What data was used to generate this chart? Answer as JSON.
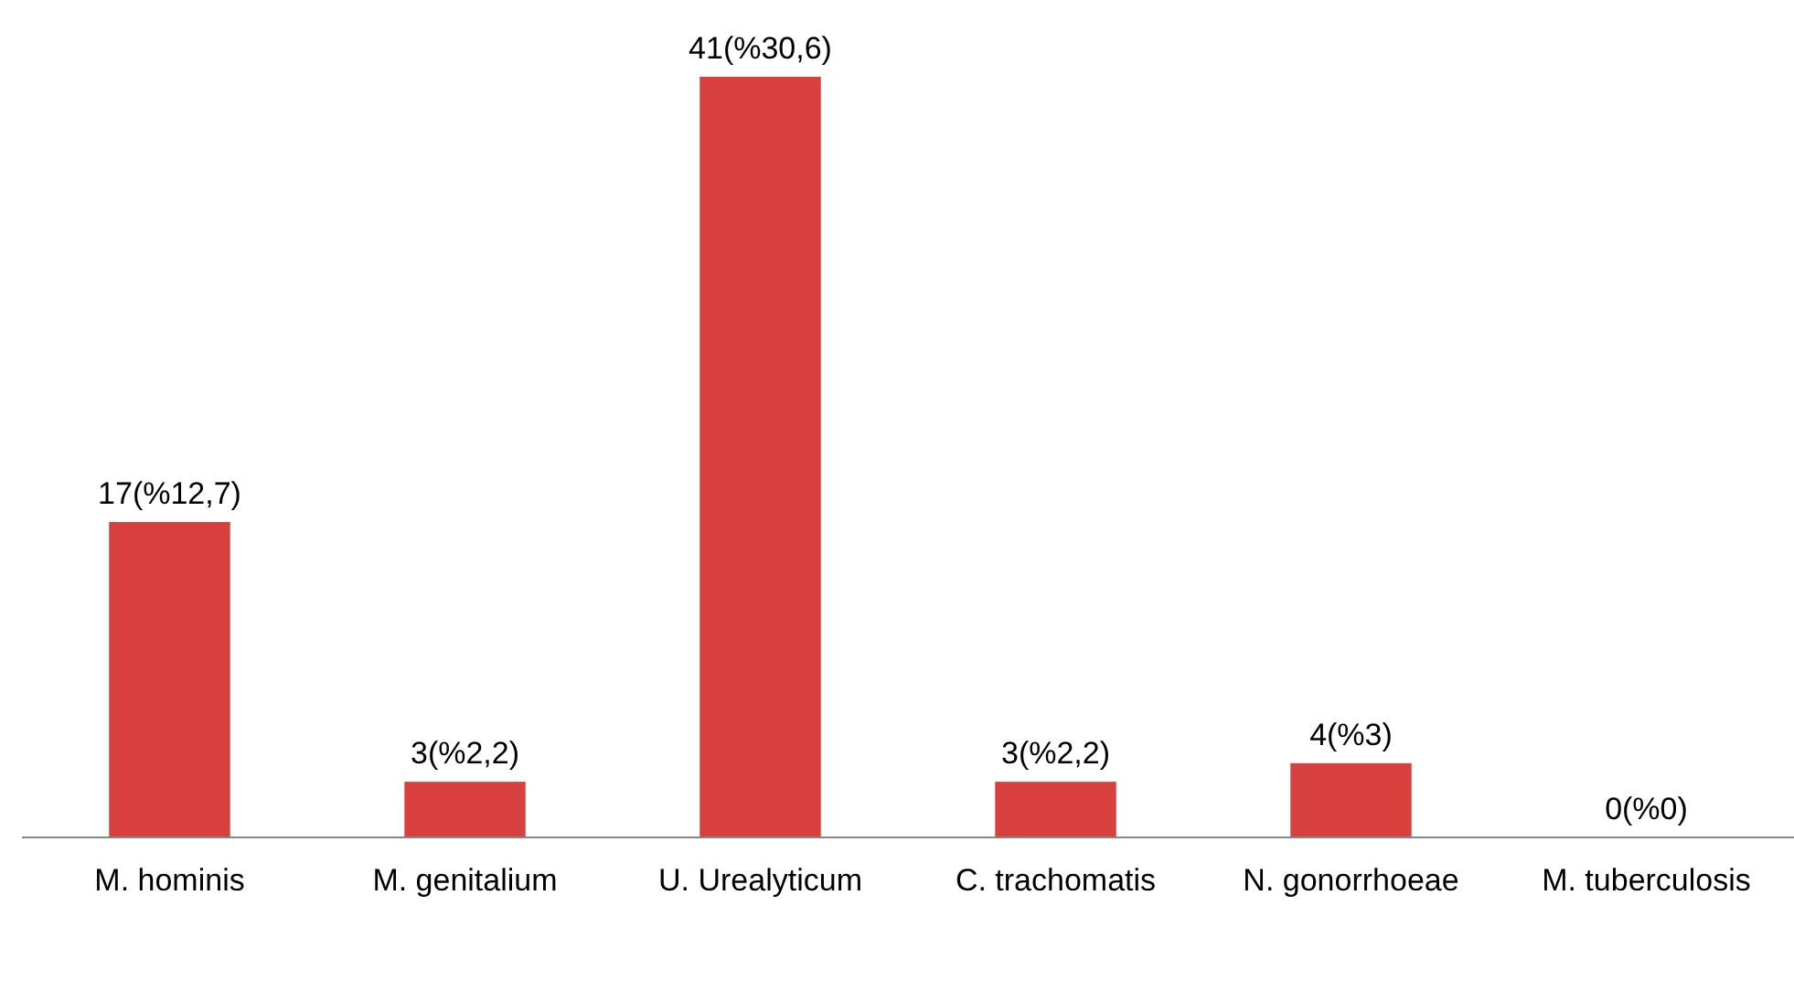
{
  "chart_data": {
    "type": "bar",
    "categories": [
      "M. hominis",
      "M. genitalium",
      "U. Urealyticum",
      "C. trachomatis",
      "N. gonorrhoeae",
      "M. tuberculosis"
    ],
    "values": [
      17,
      3,
      41,
      3,
      4,
      0
    ],
    "value_labels": [
      "17(%12,7)",
      "3(%2,2)",
      "41(%30,6)",
      "3(%2,2)",
      "4(%3)",
      "0(%0)"
    ],
    "color": "#d8403e"
  }
}
